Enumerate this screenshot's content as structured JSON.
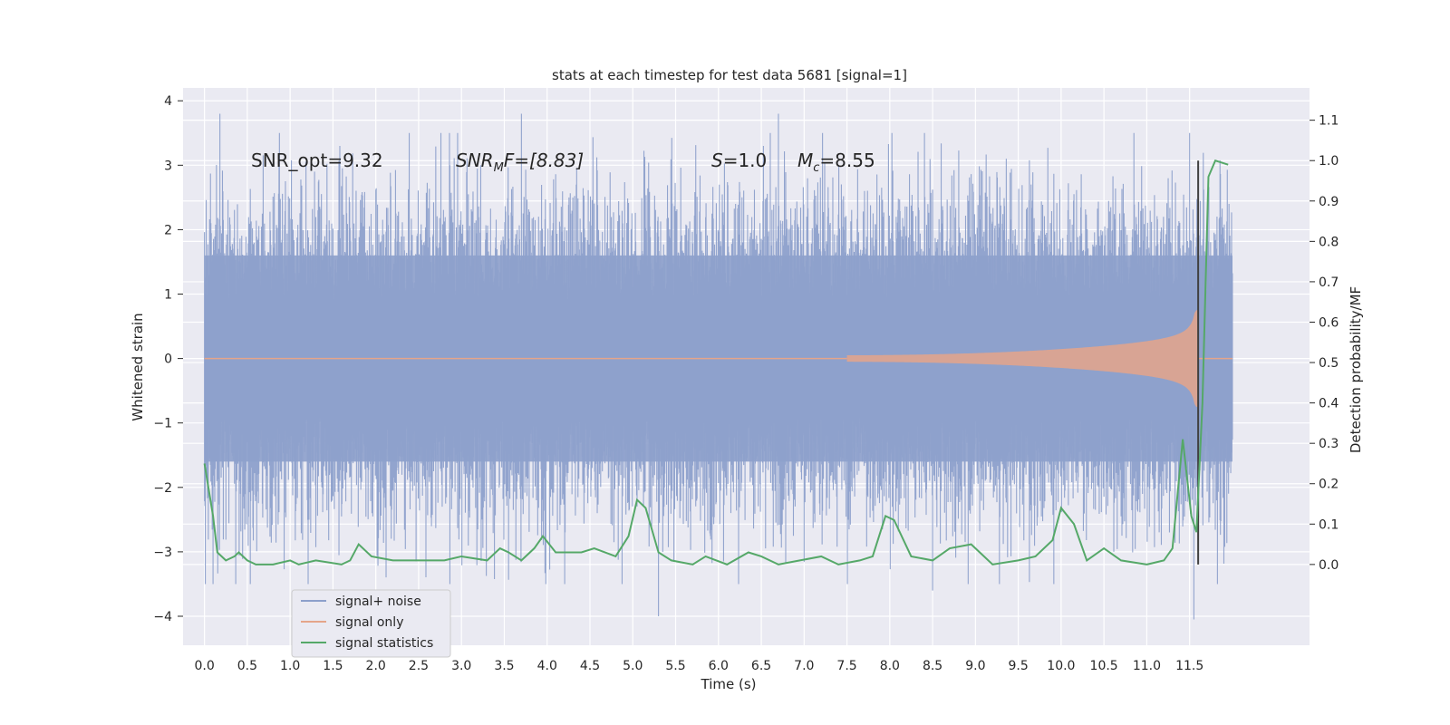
{
  "chart_data": {
    "type": "line",
    "title": "stats at each timestep for test data 5681 [signal=1]",
    "xlabel": "Time (s)",
    "ylabel": "Whitened strain",
    "y2label": "Detection probability/MF",
    "xlim": [
      -0.25,
      12.9
    ],
    "ylim": [
      -4.45,
      4.2
    ],
    "y2lim": [
      -0.2,
      1.18
    ],
    "xticks": [
      "0.0",
      "0.5",
      "1.0",
      "1.5",
      "2.0",
      "2.5",
      "3.0",
      "3.5",
      "4.0",
      "4.5",
      "5.0",
      "5.5",
      "6.0",
      "6.5",
      "7.0",
      "7.5",
      "8.0",
      "8.5",
      "9.0",
      "9.5",
      "10.0",
      "10.5",
      "11.0",
      "11.5"
    ],
    "yticks": [
      "4",
      "3",
      "2",
      "1",
      "0",
      "−1",
      "−2",
      "−3",
      "−4"
    ],
    "y2ticks": [
      "1.1",
      "1.0",
      "0.9",
      "0.8",
      "0.7",
      "0.6",
      "0.5",
      "0.4",
      "0.3",
      "0.2",
      "0.1",
      "0.0"
    ],
    "grid": true,
    "legend_position": "lower-left",
    "annotations": {
      "snr_opt": "SNR_opt=9.32",
      "snr_mf_base": "SNR",
      "snr_mf_sub": "M",
      "snr_mf_rest": "F=[8.83]",
      "s_label": "S",
      "s_value": "=1.0",
      "mc_label": "M",
      "mc_sub": "c",
      "mc_value": "=8.55"
    },
    "series": [
      {
        "name": "signal+ noise",
        "color": "#8da0cb",
        "axis": "left",
        "envelope_t": [
          0.0,
          12.0
        ],
        "typical_range": [
          -1.6,
          1.6
        ],
        "peaks_high": [
          [
            0.18,
            3.8
          ],
          [
            1.58,
            3.3
          ],
          [
            3.7,
            3.8
          ],
          [
            6.7,
            3.8
          ],
          [
            11.5,
            3.5
          ]
        ],
        "peaks_low": [
          [
            5.3,
            -4.0
          ],
          [
            11.55,
            -4.05
          ],
          [
            8.5,
            -3.6
          ]
        ]
      },
      {
        "name": "signal only",
        "color": "#e5a58a",
        "axis": "left",
        "chirp_start_t": 7.5,
        "merger_t": 11.6,
        "peak_amplitude": 0.75
      },
      {
        "name": "signal statistics",
        "color": "#55a868",
        "axis": "right",
        "points": [
          [
            0.0,
            0.25
          ],
          [
            0.1,
            0.12
          ],
          [
            0.15,
            0.03
          ],
          [
            0.25,
            0.01
          ],
          [
            0.35,
            0.02
          ],
          [
            0.4,
            0.03
          ],
          [
            0.5,
            0.01
          ],
          [
            0.6,
            0.0
          ],
          [
            0.8,
            0.0
          ],
          [
            1.0,
            0.01
          ],
          [
            1.1,
            0.0
          ],
          [
            1.3,
            0.01
          ],
          [
            1.6,
            0.0
          ],
          [
            1.7,
            0.01
          ],
          [
            1.8,
            0.05
          ],
          [
            1.95,
            0.02
          ],
          [
            2.2,
            0.01
          ],
          [
            2.5,
            0.01
          ],
          [
            2.8,
            0.01
          ],
          [
            3.0,
            0.02
          ],
          [
            3.3,
            0.01
          ],
          [
            3.45,
            0.04
          ],
          [
            3.55,
            0.03
          ],
          [
            3.7,
            0.01
          ],
          [
            3.85,
            0.04
          ],
          [
            3.95,
            0.07
          ],
          [
            4.1,
            0.03
          ],
          [
            4.4,
            0.03
          ],
          [
            4.55,
            0.04
          ],
          [
            4.8,
            0.02
          ],
          [
            4.95,
            0.07
          ],
          [
            5.05,
            0.16
          ],
          [
            5.15,
            0.14
          ],
          [
            5.3,
            0.03
          ],
          [
            5.45,
            0.01
          ],
          [
            5.7,
            0.0
          ],
          [
            5.85,
            0.02
          ],
          [
            6.1,
            0.0
          ],
          [
            6.35,
            0.03
          ],
          [
            6.5,
            0.02
          ],
          [
            6.7,
            0.0
          ],
          [
            6.95,
            0.01
          ],
          [
            7.2,
            0.02
          ],
          [
            7.4,
            0.0
          ],
          [
            7.65,
            0.01
          ],
          [
            7.8,
            0.02
          ],
          [
            7.95,
            0.12
          ],
          [
            8.05,
            0.11
          ],
          [
            8.25,
            0.02
          ],
          [
            8.5,
            0.01
          ],
          [
            8.7,
            0.04
          ],
          [
            8.95,
            0.05
          ],
          [
            9.2,
            0.0
          ],
          [
            9.5,
            0.01
          ],
          [
            9.7,
            0.02
          ],
          [
            9.9,
            0.06
          ],
          [
            10.0,
            0.14
          ],
          [
            10.15,
            0.1
          ],
          [
            10.3,
            0.01
          ],
          [
            10.5,
            0.04
          ],
          [
            10.7,
            0.01
          ],
          [
            11.0,
            0.0
          ],
          [
            11.2,
            0.01
          ],
          [
            11.3,
            0.04
          ],
          [
            11.42,
            0.31
          ],
          [
            11.52,
            0.12
          ],
          [
            11.58,
            0.08
          ],
          [
            11.65,
            0.4
          ],
          [
            11.72,
            0.96
          ],
          [
            11.8,
            1.0
          ],
          [
            11.95,
            0.99
          ]
        ]
      }
    ],
    "vertical_marker_t": 11.6,
    "vertical_marker_color": "#404040"
  }
}
